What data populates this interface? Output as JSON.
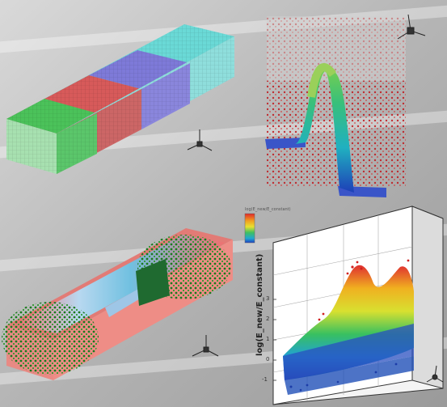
{
  "colors": {
    "background": "#c9c9c9",
    "green": "#3cb043",
    "red": "#e0484b",
    "blue": "#4a6cd4",
    "cyan": "#62d6d8"
  },
  "icons": [
    "axis-triad-icon"
  ],
  "plot": {
    "ylabel": "log(E_new/E_constant)",
    "legend_title": "log(E_new/E_constant)",
    "y_ticks": [
      "3",
      "2",
      "1",
      "0",
      "-1"
    ]
  }
}
